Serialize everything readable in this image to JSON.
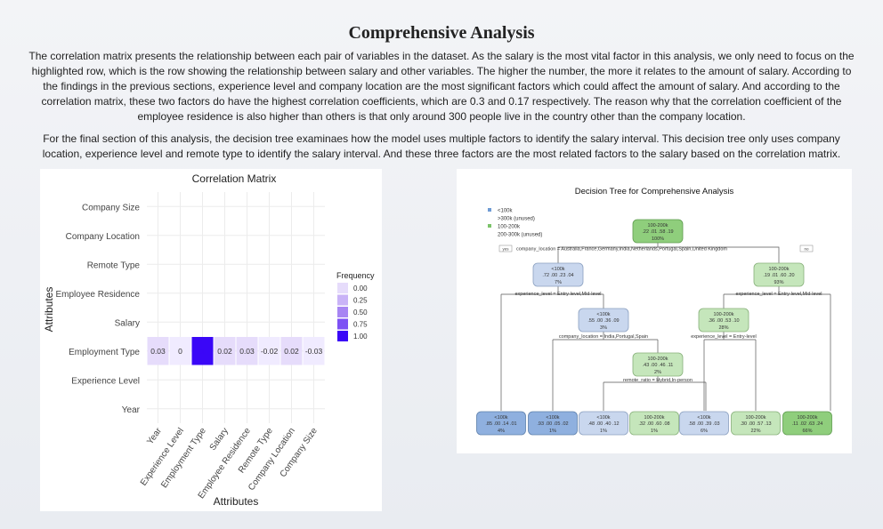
{
  "page": {
    "title": "Comprehensive Analysis",
    "paragraph1": "The correlation matrix presents the relationship between each pair of variables in the dataset. As the salary is the most vital factor in this analysis, we only need to focus on the highlighted row, which is the row showing the relationship between salary and other variables. The higher the number, the more it relates to the amount of salary. According to the findings in the previous sections, experience level and company location are the most significant factors which could affect the amount of salary. And according to the correlation matrix, these two factors do have the highest correlation coefficients, which are 0.3 and 0.17 respectively. The reason why that the correlation coefficient of the employee residence is also higher than others is that only around 300 people live in the country other than the company location.",
    "paragraph2": "For the final section of this analysis, the decision tree examinaes how the model uses multiple factors to identify the salary interval. This decision tree only uses company location, experience level and remote type to identify the salary interval. And these three factors are the most related factors to the salary based on the correlation matrix."
  },
  "chart_data": [
    {
      "type": "heatmap",
      "title": "Correlation Matrix",
      "xlabel": "Attributes",
      "ylabel": "Attributes",
      "x_categories": [
        "Year",
        "Experience Level",
        "Employment Type",
        "Salary",
        "Employee Residence",
        "Remote Type",
        "Company Location",
        "Company Size"
      ],
      "y_categories": [
        "Company Size",
        "Company Location",
        "Remote Type",
        "Employee Residence",
        "Salary",
        "Employment Type",
        "Experience Level",
        "Year"
      ],
      "cells": [
        {
          "row": "Employment Type",
          "col": "Year",
          "value": 0.03,
          "label": "0.03"
        },
        {
          "row": "Employment Type",
          "col": "Experience Level",
          "value": 0,
          "label": "0"
        },
        {
          "row": "Employment Type",
          "col": "Employment Type",
          "value": 1,
          "label": "1"
        },
        {
          "row": "Employment Type",
          "col": "Salary",
          "value": 0.02,
          "label": "0.02"
        },
        {
          "row": "Employment Type",
          "col": "Employee Residence",
          "value": 0.03,
          "label": "0.03"
        },
        {
          "row": "Employment Type",
          "col": "Remote Type",
          "value": -0.02,
          "label": "-0.02"
        },
        {
          "row": "Employment Type",
          "col": "Company Location",
          "value": 0.02,
          "label": "0.02"
        },
        {
          "row": "Employment Type",
          "col": "Company Size",
          "value": -0.03,
          "label": "-0.03"
        }
      ],
      "legend": {
        "title": "Frequency",
        "placement": "right",
        "ticks": [
          "0.00",
          "0.25",
          "0.50",
          "0.75",
          "1.00"
        ],
        "colors": [
          "#e6dcfb",
          "#c9b3f7",
          "#a785f3",
          "#7d51f4",
          "#3a07f7"
        ]
      }
    },
    {
      "type": "tree",
      "title": "Decision Tree for Comprehensive Analysis",
      "legend": [
        {
          "label": "<100k",
          "color": "#6f9bd4"
        },
        {
          "label": ">300k (unused)",
          "color": "#ffffff"
        },
        {
          "label": "100-200k",
          "color": "#7cc36a"
        },
        {
          "label": "200-300k (unused)",
          "color": "#ffffff"
        }
      ],
      "root_split": {
        "yes": "yes",
        "no": "no",
        "rule": "company_location = Australia,France,Germany,India,Netherlands,Portugal,Spain,United Kingdom"
      },
      "nodes": {
        "root": {
          "cls": "100-200k",
          "probs": ".22 .01 .58 .19",
          "pct": "100%"
        },
        "n2": {
          "cls": "<100k",
          "probs": ".72 .00 .23 .04",
          "pct": "7%",
          "split": "experience_level = Entry-level,Mid-level"
        },
        "n3": {
          "cls": "100-200k",
          "probs": ".19 .01 .60 .20",
          "pct": "93%",
          "split": "experience_level = Entry-level,Mid-level"
        },
        "n5": {
          "cls": "<100k",
          "probs": ".55 .00 .36 .09",
          "pct": "3%",
          "split": "company_location = India,Portugal,Spain"
        },
        "n6": {
          "cls": "100-200k",
          "probs": ".36 .00 .53 .10",
          "pct": "28%",
          "split": "experience_level = Entry-level"
        },
        "n11": {
          "cls": "100-200k",
          "probs": ".43 .00 .46 .11",
          "pct": "2%",
          "split": "remote_ratio = Hybrid,In-person"
        },
        "leaves": [
          {
            "cls": "<100k",
            "probs": ".85 .00 .14 .01",
            "pct": "4%"
          },
          {
            "cls": "<100k",
            "probs": ".93 .00 .05 .02",
            "pct": "1%"
          },
          {
            "cls": "<100k",
            "probs": ".48 .00 .40 .12",
            "pct": "1%"
          },
          {
            "cls": "100-200k",
            "probs": ".32 .00 .60 .08",
            "pct": "1%"
          },
          {
            "cls": "<100k",
            "probs": ".58 .00 .39 .03",
            "pct": "6%"
          },
          {
            "cls": "100-200k",
            "probs": ".30 .00 .57 .13",
            "pct": "22%"
          },
          {
            "cls": "100-200k",
            "probs": ".11 .02 .63 .24",
            "pct": "66%"
          }
        ]
      }
    }
  ]
}
